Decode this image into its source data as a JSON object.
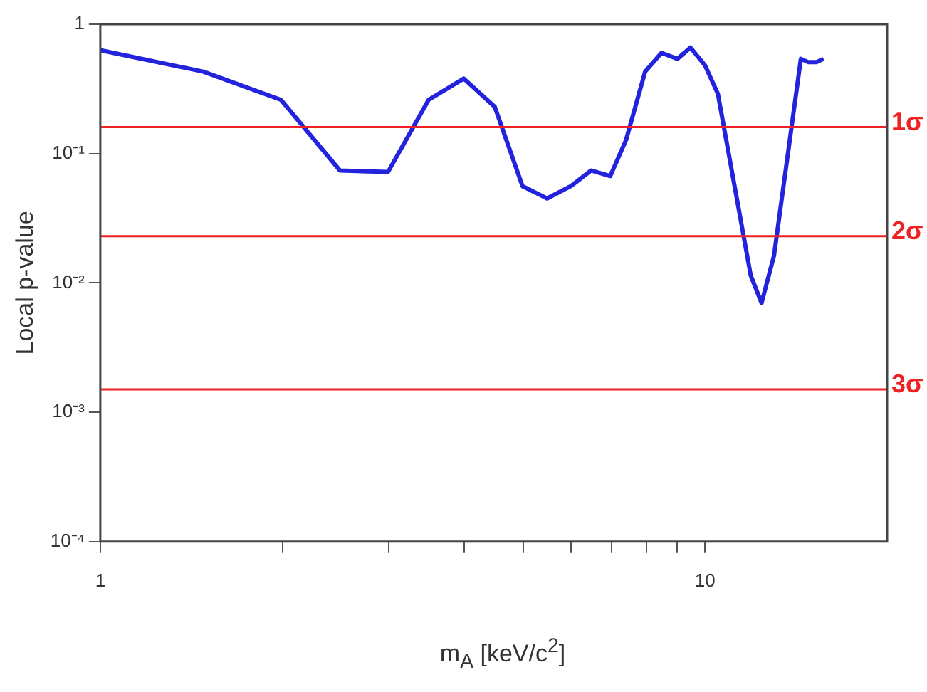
{
  "chart_data": {
    "type": "line",
    "xlabel": "m$_{A}$ [keV/c$^{2}$]",
    "ylabel": "Local p-value",
    "log": "xy",
    "grid": false,
    "legend": false,
    "marker": "none",
    "line_style": "solid",
    "xlim": [
      1,
      20
    ],
    "xticks": [
      1,
      {
        "value": 2,
        "label": null
      },
      {
        "value": 3,
        "label": null
      },
      {
        "value": 4,
        "label": null
      },
      {
        "value": 5,
        "label": null
      },
      {
        "value": 6,
        "label": null
      },
      {
        "value": 7,
        "label": null
      },
      {
        "value": 8,
        "label": null
      },
      {
        "value": 9,
        "label": null
      },
      10
    ],
    "ylim": [
      0.0001,
      1
    ],
    "yticks": [
      {
        "value": 0.0001,
        "label": "10⁻⁴"
      },
      {
        "value": 0.001,
        "label": "10⁻³"
      },
      {
        "value": 0.01,
        "label": "10⁻²"
      },
      {
        "value": 0.1,
        "label": "10⁻¹"
      },
      {
        "value": 1,
        "label": "1"
      }
    ],
    "x": [
      1,
      1.48,
      1.99,
      2.49,
      2.99,
      3.49,
      3.99,
      4.49,
      4.99,
      5.48,
      6.0,
      6.48,
      6.97,
      7.4,
      7.96,
      8.47,
      9.0,
      9.46,
      10,
      10.5,
      11.9,
      12.4,
      13.0,
      14.4,
      14.8,
      15.3,
      15.7
    ],
    "series": [
      {
        "color": "#2323dd",
        "values": [
          0.63,
          0.43,
          0.26,
          0.074,
          0.072,
          0.26,
          0.38,
          0.23,
          0.056,
          0.045,
          0.056,
          0.074,
          0.067,
          0.127,
          0.43,
          0.6,
          0.54,
          0.66,
          0.48,
          0.29,
          0.0114,
          0.007,
          0.0162,
          0.54,
          0.51,
          0.51,
          0.54
        ]
      }
    ],
    "ref_lines": [
      {
        "axis": "y",
        "value": 0.16,
        "label": "1σ",
        "color": "#ee2222"
      },
      {
        "axis": "y",
        "value": 0.023,
        "label": "2σ",
        "color": "#ee2222"
      },
      {
        "axis": "y",
        "value": 0.0015,
        "label": "3σ",
        "color": "#ee2222"
      }
    ]
  }
}
